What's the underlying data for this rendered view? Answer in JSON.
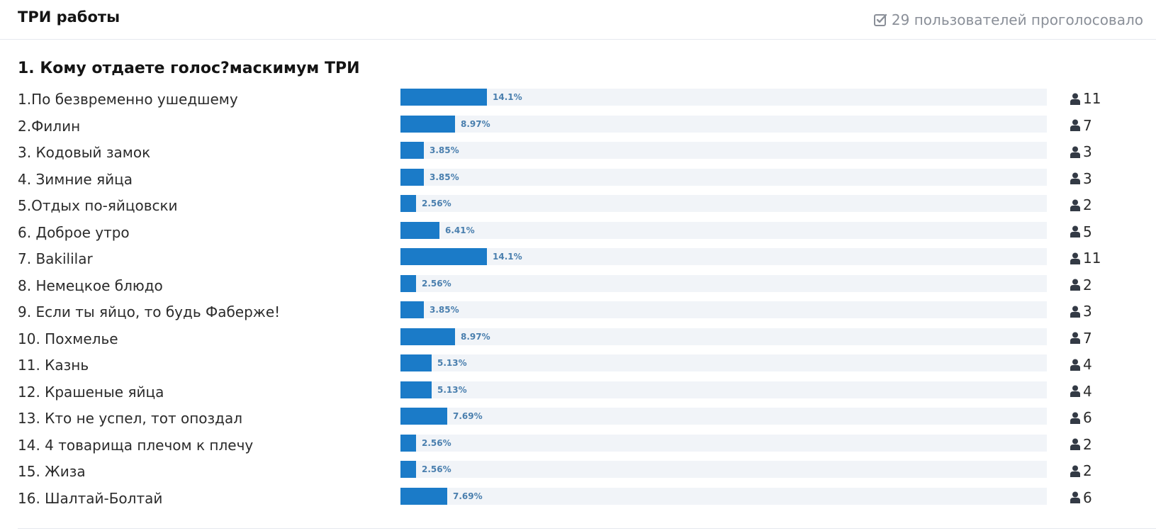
{
  "poll": {
    "title": "ТРИ работы",
    "voters_text": "29 пользователей проголосовало",
    "question": "1. Кому отдаете голос?маскимум ТРИ",
    "accent_color": "#1b7bc8",
    "options": [
      {
        "label": "1.По безвременно ушедшему",
        "percent": "14.1%",
        "fraction": 0.141,
        "votes": "11"
      },
      {
        "label": "2.Филин",
        "percent": "8.97%",
        "fraction": 0.0897,
        "votes": "7"
      },
      {
        "label": "3. Кодовый замок",
        "percent": "3.85%",
        "fraction": 0.0385,
        "votes": "3"
      },
      {
        "label": "4. Зимние яйца",
        "percent": "3.85%",
        "fraction": 0.0385,
        "votes": "3"
      },
      {
        "label": "5.Отдых по-яйцовски",
        "percent": "2.56%",
        "fraction": 0.0256,
        "votes": "2"
      },
      {
        "label": "6. Доброе утро",
        "percent": "6.41%",
        "fraction": 0.0641,
        "votes": "5"
      },
      {
        "label": "7. Bakililar",
        "percent": "14.1%",
        "fraction": 0.141,
        "votes": "11"
      },
      {
        "label": "8. Немецкое блюдо",
        "percent": "2.56%",
        "fraction": 0.0256,
        "votes": "2"
      },
      {
        "label": "9. Если ты яйцо, то будь Фаберже!",
        "percent": "3.85%",
        "fraction": 0.0385,
        "votes": "3"
      },
      {
        "label": "10. Похмелье",
        "percent": "8.97%",
        "fraction": 0.0897,
        "votes": "7"
      },
      {
        "label": "11. Казнь",
        "percent": "5.13%",
        "fraction": 0.0513,
        "votes": "4"
      },
      {
        "label": "12. Крашеные яйца",
        "percent": "5.13%",
        "fraction": 0.0513,
        "votes": "4"
      },
      {
        "label": "13. Кто не успел, тот опоздал",
        "percent": "7.69%",
        "fraction": 0.0769,
        "votes": "6"
      },
      {
        "label": "14. 4 товарища плечом к плечу",
        "percent": "2.56%",
        "fraction": 0.0256,
        "votes": "2"
      },
      {
        "label": "15. Жиза",
        "percent": "2.56%",
        "fraction": 0.0256,
        "votes": "2"
      },
      {
        "label": "16. Шалтай-Болтай",
        "percent": "7.69%",
        "fraction": 0.0769,
        "votes": "6"
      }
    ]
  }
}
